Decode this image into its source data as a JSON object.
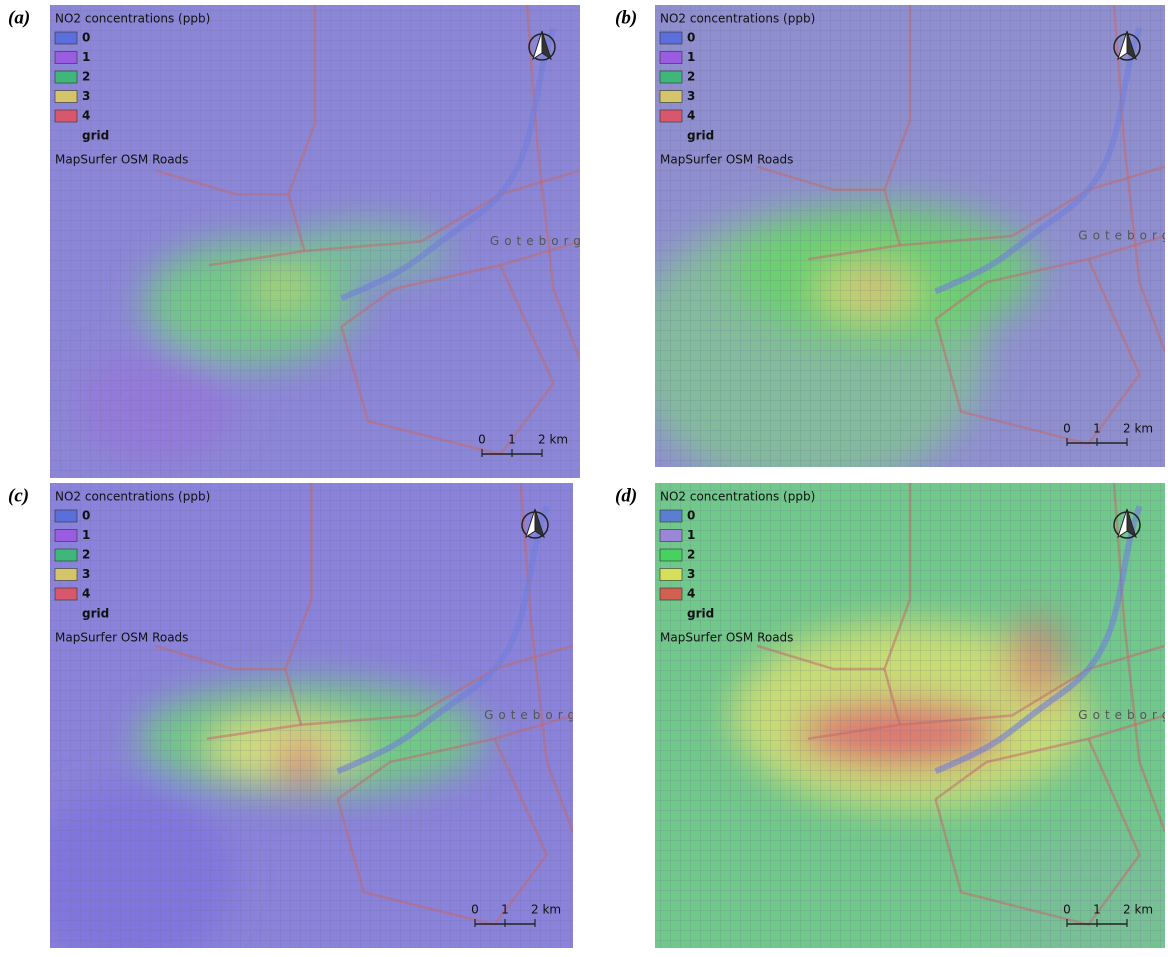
{
  "panels": [
    {
      "label": "(a)",
      "legend_title": "NO2 concentrations (ppb)",
      "legend_items": [
        {
          "name": "0",
          "color": "#5a6fdc"
        },
        {
          "name": "1",
          "color": "#9a5ce0"
        },
        {
          "name": "2",
          "color": "#3fb77a"
        },
        {
          "name": "3",
          "color": "#d4c46a"
        },
        {
          "name": "4",
          "color": "#d9576c"
        }
      ],
      "grid_label": "grid",
      "basemap_label": "MapSurfer OSM Roads",
      "city_label": "Goteborg",
      "scale_labels": [
        "0",
        "1",
        "2 km"
      ]
    },
    {
      "label": "(b)",
      "legend_title": "NO2 concentrations (ppb)",
      "legend_items": [
        {
          "name": "0",
          "color": "#5a6fdc"
        },
        {
          "name": "1",
          "color": "#9a5ce0"
        },
        {
          "name": "2",
          "color": "#3fb77a"
        },
        {
          "name": "3",
          "color": "#d4c46a"
        },
        {
          "name": "4",
          "color": "#d9576c"
        }
      ],
      "grid_label": "grid",
      "basemap_label": "MapSurfer OSM Roads",
      "city_label": "Goteborg",
      "scale_labels": [
        "0",
        "1",
        "2 km"
      ]
    },
    {
      "label": "(c)",
      "legend_title": "NO2 concentrations (ppb)",
      "legend_items": [
        {
          "name": "0",
          "color": "#5a6fdc"
        },
        {
          "name": "1",
          "color": "#9a5ce0"
        },
        {
          "name": "2",
          "color": "#3fb77a"
        },
        {
          "name": "3",
          "color": "#d4c46a"
        },
        {
          "name": "4",
          "color": "#d9576c"
        }
      ],
      "grid_label": "grid",
      "basemap_label": "MapSurfer OSM Roads",
      "city_label": "Goteborg",
      "scale_labels": [
        "0",
        "1",
        "2 km"
      ]
    },
    {
      "label": "(d)",
      "legend_title": "NO2 concentrations (ppb)",
      "legend_items": [
        {
          "name": "0",
          "color": "#5b7fd0"
        },
        {
          "name": "1",
          "color": "#9b86d8"
        },
        {
          "name": "2",
          "color": "#47d160"
        },
        {
          "name": "3",
          "color": "#d6df5a"
        },
        {
          "name": "4",
          "color": "#d0604f"
        }
      ],
      "grid_label": "grid",
      "basemap_label": "MapSurfer OSM Roads",
      "city_label": "Goteborg",
      "scale_labels": [
        "0",
        "1",
        "2 km"
      ]
    }
  ]
}
